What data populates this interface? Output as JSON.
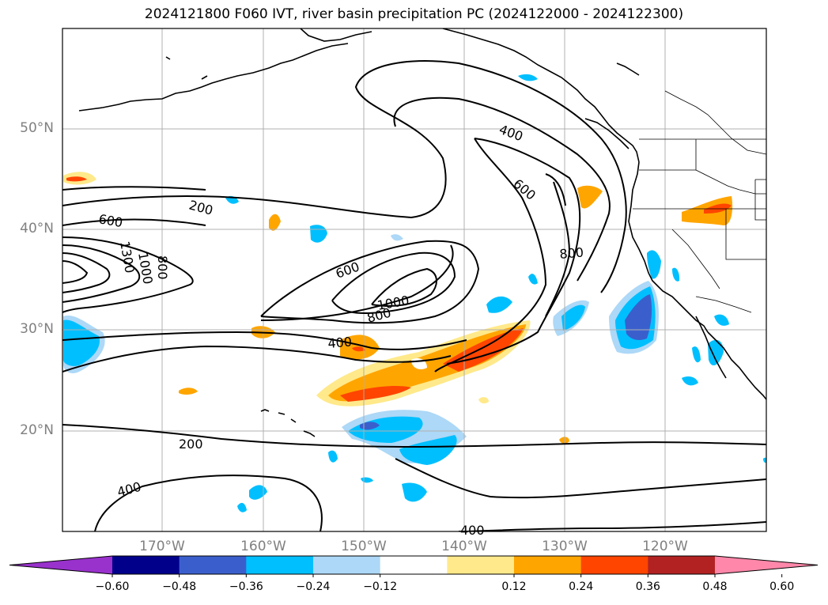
{
  "title": "2024121800 F060 IVT, river basin precipitation PC (2024122000 - 2024122300)",
  "map": {
    "projection": "PlateCarree",
    "extent": {
      "lon_min": -180,
      "lon_max": -110,
      "lat_min": 10,
      "lat_max": 60
    },
    "lat_gridlines": [
      20,
      30,
      40,
      50
    ],
    "lon_gridlines": [
      -170,
      -160,
      -150,
      -140,
      -130,
      -120
    ],
    "lat_labels": [
      "20°N",
      "30°N",
      "40°N",
      "50°N"
    ],
    "lon_labels": [
      "170°W",
      "160°W",
      "150°W",
      "140°W",
      "130°W",
      "120°W"
    ],
    "ivt_contour_levels": [
      200,
      400,
      600,
      800,
      1000,
      1300
    ],
    "contour_labels": [
      "200",
      "200",
      "400",
      "400",
      "400",
      "400",
      "600",
      "600",
      "600",
      "800",
      "800",
      "800",
      "1000",
      "1000",
      "1300"
    ]
  },
  "colorbar": {
    "extend": "both",
    "tick_labels": [
      "−0.60",
      "−0.48",
      "−0.36",
      "−0.24",
      "−0.12",
      "0.12",
      "0.24",
      "0.36",
      "0.48",
      "0.60"
    ],
    "colors": [
      "#9932cc",
      "#00008b",
      "#3a5fcd",
      "#00bfff",
      "#add8f7",
      "#ffffff",
      "#ffe98a",
      "#ffa500",
      "#ff4500",
      "#b22222",
      "#ff88aa"
    ]
  },
  "colors": {
    "coast": "#000000",
    "contour": "#000000",
    "grid": "#b0b0b0",
    "axis_label": "#808080"
  }
}
